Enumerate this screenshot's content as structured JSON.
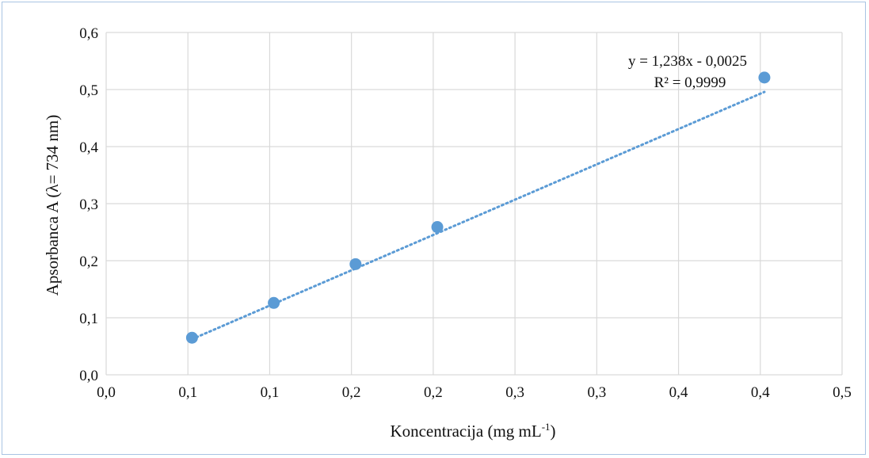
{
  "chart_data": {
    "type": "scatter",
    "x_tick_labels": [
      "0,0",
      "0,1",
      "0,1",
      "0,2",
      "0,2",
      "0,3",
      "0,3",
      "0,4",
      "0,4",
      "0,5"
    ],
    "y_tick_labels": [
      "0,0",
      "0,1",
      "0,2",
      "0,3",
      "0,4",
      "0,5",
      "0,6"
    ],
    "xlim": [
      0,
      0.45
    ],
    "ylim": [
      0,
      0.6
    ],
    "xlabel": "Koncentracija (mg mL",
    "xlabel_sup": "-1",
    "xlabel_end": ")",
    "ylabel": "Apsorbanca A (λ= 734 nm)",
    "grid": true,
    "points": [
      {
        "x": 0.0525,
        "y": 0.065
      },
      {
        "x": 0.1025,
        "y": 0.126
      },
      {
        "x": 0.1525,
        "y": 0.194
      },
      {
        "x": 0.2025,
        "y": 0.259
      },
      {
        "x": 0.4025,
        "y": 0.521
      }
    ],
    "trendline": {
      "slope": 1.238,
      "intercept": -0.0025,
      "x_range": [
        0.0525,
        0.4025
      ],
      "style": "dotted",
      "equation": "y = 1,238x - 0,0025",
      "r_squared": "R² = 0,9999"
    },
    "marker_color": "#5b9bd5",
    "grid_color": "#d9d9d9"
  }
}
